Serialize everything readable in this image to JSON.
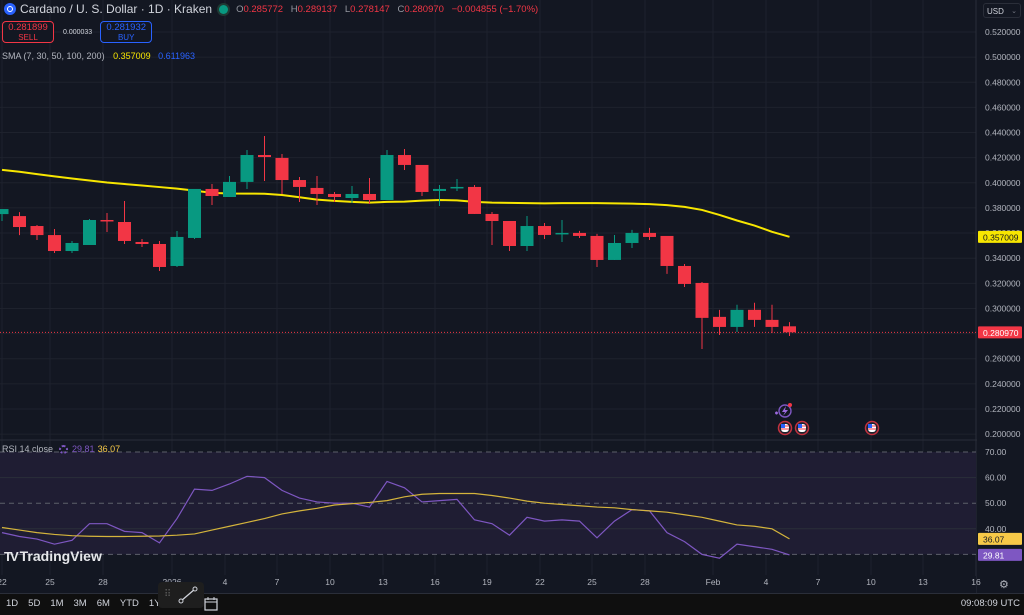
{
  "header": {
    "symbol": "Cardano / U. S. Dollar · 1D · Kraken",
    "ohlc": {
      "o_label": "O",
      "o": "0.285772",
      "h_label": "H",
      "h": "0.289137",
      "l_label": "L",
      "l": "0.278147",
      "c_label": "C",
      "c": "0.280970",
      "change": "−0.004855 (−1.70%)"
    }
  },
  "trade": {
    "sell_price": "0.281899",
    "sell_label": "SELL",
    "spread": "0.000033",
    "buy_price": "0.281932",
    "buy_label": "BUY"
  },
  "indicators": {
    "sma_label": "SMA (7, 30, 50, 100, 200)",
    "sma_value_1": "0.357009",
    "sma_value_2": "0.611963",
    "rsi_label": "RSI 14 close",
    "rsi_value": "29.81",
    "rsi_ma_value": "36.07"
  },
  "currency_selector": "USD",
  "watermark": "TradingView",
  "bottom_bar": {
    "ranges": [
      "1D",
      "5D",
      "1M",
      "3M",
      "6M",
      "YTD",
      "1Y",
      "5Y",
      "All"
    ],
    "clock": "09:08:09 UTC"
  },
  "colors": {
    "background": "#131722",
    "up": "#089981",
    "down": "#f23645",
    "sma": "#f7e600",
    "rsi": "#7e57c2",
    "rsi_ma": "#d4b43c",
    "price_line": "#f23645"
  },
  "chart_data": [
    {
      "type": "candlestick",
      "title": "Cardano / U. S. Dollar · 1D · Kraken",
      "ylabel": "USD",
      "ylim": [
        0.19,
        0.53
      ],
      "y_ticks": [
        "0.520000",
        "0.500000",
        "0.480000",
        "0.460000",
        "0.440000",
        "0.420000",
        "0.400000",
        "0.380000",
        "0.360000",
        "0.340000",
        "0.320000",
        "0.300000",
        "0.280000",
        "0.260000",
        "0.240000",
        "0.220000",
        "0.200000"
      ],
      "x_ticks": [
        "22",
        "25",
        "28",
        "2026",
        "4",
        "7",
        "10",
        "13",
        "16",
        "19",
        "22",
        "25",
        "28",
        "Feb",
        "4",
        "7",
        "10",
        "13",
        "16"
      ],
      "last_price": "0.280970",
      "sma_last": "0.357009",
      "candles": [
        {
          "d": "Dec 22",
          "o": 0.3751,
          "h": 0.3783,
          "l": 0.3696,
          "c": 0.3791
        },
        {
          "d": "Dec 23",
          "o": 0.3735,
          "h": 0.3767,
          "l": 0.3584,
          "c": 0.3648
        },
        {
          "d": "Dec 24",
          "o": 0.3656,
          "h": 0.3664,
          "l": 0.3545,
          "c": 0.3584
        },
        {
          "d": "Dec 25",
          "o": 0.3584,
          "h": 0.3632,
          "l": 0.3441,
          "c": 0.3457
        },
        {
          "d": "Dec 26",
          "o": 0.3457,
          "h": 0.3537,
          "l": 0.3441,
          "c": 0.3521
        },
        {
          "d": "Dec 27",
          "o": 0.3505,
          "h": 0.3712,
          "l": 0.3505,
          "c": 0.3704
        },
        {
          "d": "Dec 28",
          "o": 0.3704,
          "h": 0.376,
          "l": 0.3608,
          "c": 0.3696
        },
        {
          "d": "Dec 29",
          "o": 0.3688,
          "h": 0.3855,
          "l": 0.3513,
          "c": 0.3537
        },
        {
          "d": "Dec 30",
          "o": 0.3529,
          "h": 0.3553,
          "l": 0.3489,
          "c": 0.3513
        },
        {
          "d": "Dec 31",
          "o": 0.3513,
          "h": 0.3537,
          "l": 0.3298,
          "c": 0.333
        },
        {
          "d": "Jan 1",
          "o": 0.3338,
          "h": 0.3616,
          "l": 0.333,
          "c": 0.3569
        },
        {
          "d": "Jan 2",
          "o": 0.3561,
          "h": 0.3951,
          "l": 0.3553,
          "c": 0.3951
        },
        {
          "d": "Jan 3",
          "o": 0.3951,
          "h": 0.399,
          "l": 0.3823,
          "c": 0.3895
        },
        {
          "d": "Jan 4",
          "o": 0.3887,
          "h": 0.4054,
          "l": 0.3887,
          "c": 0.4007
        },
        {
          "d": "Jan 5",
          "o": 0.4007,
          "h": 0.4261,
          "l": 0.3951,
          "c": 0.4221
        },
        {
          "d": "Jan 6",
          "o": 0.4221,
          "h": 0.4372,
          "l": 0.4014,
          "c": 0.4205
        },
        {
          "d": "Jan 7",
          "o": 0.4198,
          "h": 0.4229,
          "l": 0.3911,
          "c": 0.4022
        },
        {
          "d": "Jan 8",
          "o": 0.4022,
          "h": 0.4046,
          "l": 0.3847,
          "c": 0.3967
        },
        {
          "d": "Jan 9",
          "o": 0.3959,
          "h": 0.4054,
          "l": 0.3823,
          "c": 0.3911
        },
        {
          "d": "Jan 10",
          "o": 0.3911,
          "h": 0.3927,
          "l": 0.3847,
          "c": 0.3887
        },
        {
          "d": "Jan 11",
          "o": 0.3879,
          "h": 0.3974,
          "l": 0.3839,
          "c": 0.3911
        },
        {
          "d": "Jan 12",
          "o": 0.3911,
          "h": 0.4038,
          "l": 0.3831,
          "c": 0.3863
        },
        {
          "d": "Jan 13",
          "o": 0.3863,
          "h": 0.4261,
          "l": 0.3863,
          "c": 0.4221
        },
        {
          "d": "Jan 14",
          "o": 0.4221,
          "h": 0.4269,
          "l": 0.4102,
          "c": 0.4142
        },
        {
          "d": "Jan 15",
          "o": 0.4142,
          "h": 0.4142,
          "l": 0.3895,
          "c": 0.3927
        },
        {
          "d": "Jan 16",
          "o": 0.3935,
          "h": 0.3982,
          "l": 0.3815,
          "c": 0.3951
        },
        {
          "d": "Jan 17",
          "o": 0.3959,
          "h": 0.403,
          "l": 0.3935,
          "c": 0.3967
        },
        {
          "d": "Jan 18",
          "o": 0.3967,
          "h": 0.3982,
          "l": 0.3752,
          "c": 0.3752
        },
        {
          "d": "Jan 19",
          "o": 0.3752,
          "h": 0.3768,
          "l": 0.3505,
          "c": 0.3696
        },
        {
          "d": "Jan 20",
          "o": 0.3696,
          "h": 0.3696,
          "l": 0.3457,
          "c": 0.3497
        },
        {
          "d": "Jan 21",
          "o": 0.3497,
          "h": 0.3736,
          "l": 0.3457,
          "c": 0.3656
        },
        {
          "d": "Jan 22",
          "o": 0.3656,
          "h": 0.368,
          "l": 0.3553,
          "c": 0.3585
        },
        {
          "d": "Jan 23",
          "o": 0.3593,
          "h": 0.3704,
          "l": 0.3529,
          "c": 0.3601
        },
        {
          "d": "Jan 24",
          "o": 0.3601,
          "h": 0.3617,
          "l": 0.3561,
          "c": 0.3577
        },
        {
          "d": "Jan 25",
          "o": 0.3577,
          "h": 0.3593,
          "l": 0.333,
          "c": 0.3386
        },
        {
          "d": "Jan 26",
          "o": 0.3386,
          "h": 0.3585,
          "l": 0.3386,
          "c": 0.3521
        },
        {
          "d": "Jan 27",
          "o": 0.3521,
          "h": 0.3625,
          "l": 0.3481,
          "c": 0.3601
        },
        {
          "d": "Jan 28",
          "o": 0.3601,
          "h": 0.3641,
          "l": 0.3545,
          "c": 0.3569
        },
        {
          "d": "Jan 29",
          "o": 0.3577,
          "h": 0.3577,
          "l": 0.3275,
          "c": 0.3338
        },
        {
          "d": "Jan 30",
          "o": 0.3338,
          "h": 0.3354,
          "l": 0.3171,
          "c": 0.3195
        },
        {
          "d": "Jan 31",
          "o": 0.3203,
          "h": 0.3211,
          "l": 0.2677,
          "c": 0.2925
        },
        {
          "d": "Feb 1",
          "o": 0.2933,
          "h": 0.2989,
          "l": 0.2789,
          "c": 0.2853
        },
        {
          "d": "Feb 2",
          "o": 0.2853,
          "h": 0.3029,
          "l": 0.2813,
          "c": 0.2989
        },
        {
          "d": "Feb 3",
          "o": 0.2989,
          "h": 0.3045,
          "l": 0.2853,
          "c": 0.2909
        },
        {
          "d": "Feb 4",
          "o": 0.2909,
          "h": 0.3029,
          "l": 0.2805,
          "c": 0.2853
        },
        {
          "d": "Feb 5",
          "o": 0.2858,
          "h": 0.2891,
          "l": 0.2781,
          "c": 0.281
        }
      ],
      "sma_series": {
        "name": "SMA",
        "points": [
          [
            0,
            0.4103
          ],
          [
            1,
            0.4088
          ],
          [
            2,
            0.4069
          ],
          [
            3,
            0.4051
          ],
          [
            4,
            0.4034
          ],
          [
            5,
            0.4018
          ],
          [
            6,
            0.4002
          ],
          [
            7,
            0.399
          ],
          [
            8,
            0.3978
          ],
          [
            9,
            0.3966
          ],
          [
            10,
            0.3954
          ],
          [
            11,
            0.3938
          ],
          [
            12,
            0.392
          ],
          [
            13,
            0.3915
          ],
          [
            14,
            0.3914
          ],
          [
            15,
            0.3913
          ],
          [
            16,
            0.3903
          ],
          [
            17,
            0.3885
          ],
          [
            18,
            0.3866
          ],
          [
            19,
            0.3856
          ],
          [
            20,
            0.3848
          ],
          [
            21,
            0.3842
          ],
          [
            22,
            0.3848
          ],
          [
            23,
            0.385
          ],
          [
            24,
            0.3858
          ],
          [
            25,
            0.3863
          ],
          [
            26,
            0.386
          ],
          [
            27,
            0.3848
          ],
          [
            28,
            0.3842
          ],
          [
            29,
            0.384
          ],
          [
            30,
            0.3838
          ],
          [
            31,
            0.3836
          ],
          [
            32,
            0.3838
          ],
          [
            33,
            0.3838
          ],
          [
            34,
            0.3838
          ],
          [
            35,
            0.3836
          ],
          [
            36,
            0.3834
          ],
          [
            37,
            0.383
          ],
          [
            38,
            0.3822
          ],
          [
            39,
            0.3808
          ],
          [
            40,
            0.3784
          ],
          [
            41,
            0.3744
          ],
          [
            42,
            0.37
          ],
          [
            43,
            0.366
          ],
          [
            44,
            0.361
          ],
          [
            45,
            0.357
          ]
        ]
      }
    },
    {
      "type": "line",
      "title": "RSI 14 close",
      "ylim": [
        25,
        75
      ],
      "y_ticks": [
        "70.00",
        "60.00",
        "50.00",
        "40.00"
      ],
      "bands": [
        30,
        70
      ],
      "series": [
        {
          "name": "RSI",
          "last": "29.81",
          "values": [
            38.5,
            37.0,
            36.0,
            34.0,
            35.5,
            42.0,
            42.0,
            39.0,
            38.5,
            34.5,
            44.0,
            55.5,
            55.0,
            57.5,
            60.5,
            60.0,
            55.0,
            52.0,
            50.5,
            50.0,
            50.0,
            48.5,
            58.5,
            56.0,
            50.5,
            51.0,
            51.5,
            43.5,
            42.0,
            37.5,
            44.5,
            43.0,
            43.5,
            43.0,
            36.5,
            43.0,
            47.5,
            47.0,
            38.5,
            35.0,
            30.0,
            28.5,
            34.0,
            33.0,
            32.0,
            29.81
          ]
        },
        {
          "name": "RSI MA",
          "last": "36.07",
          "values": [
            40.5,
            39.5,
            38.5,
            37.8,
            37.3,
            37.1,
            37.0,
            37.0,
            37.1,
            37.2,
            37.5,
            38.0,
            39.5,
            41.0,
            42.5,
            44.0,
            45.8,
            47.0,
            48.0,
            49.3,
            49.8,
            50.3,
            51.0,
            52.5,
            53.5,
            53.8,
            53.8,
            53.8,
            53.0,
            52.0,
            50.8,
            50.0,
            49.5,
            49.0,
            48.5,
            48.2,
            47.5,
            47.0,
            46.5,
            45.5,
            44.5,
            43.0,
            41.5,
            41.0,
            40.0,
            36.07
          ]
        }
      ]
    }
  ]
}
